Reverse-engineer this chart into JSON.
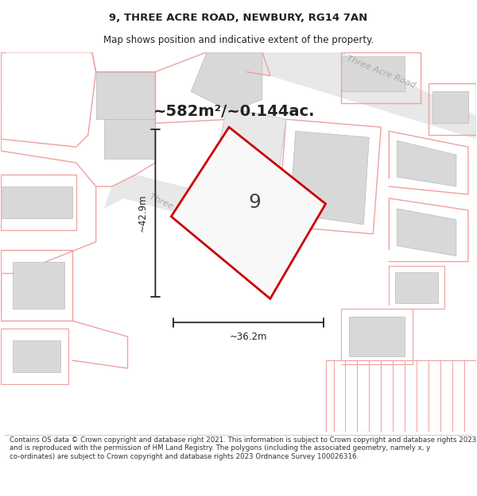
{
  "title": "9, THREE ACRE ROAD, NEWBURY, RG14 7AN",
  "subtitle": "Map shows position and indicative extent of the property.",
  "area_text": "~582m²/~0.144ac.",
  "dim_width": "~36.2m",
  "dim_height": "~42.9m",
  "label_number": "9",
  "footer": "Contains OS data © Crown copyright and database right 2021. This information is subject to Crown copyright and database rights 2023 and is reproduced with the permission of HM Land Registry. The polygons (including the associated geometry, namely x, y co-ordinates) are subject to Crown copyright and database rights 2023 Ordnance Survey 100026316.",
  "bg_color": "#ffffff",
  "map_bg": "#ffffff",
  "road_fill": "#e8e8e8",
  "road_edge": "#cccccc",
  "plot_line_color": "#cc0000",
  "pink_line": "#f0a0a0",
  "building_fill": "#d8d8d8",
  "road_label_color": "#aaaaaa",
  "title_color": "#222222",
  "footer_color": "#333333",
  "title_fontsize": 9.5,
  "subtitle_fontsize": 8.5,
  "footer_fontsize": 6.2
}
